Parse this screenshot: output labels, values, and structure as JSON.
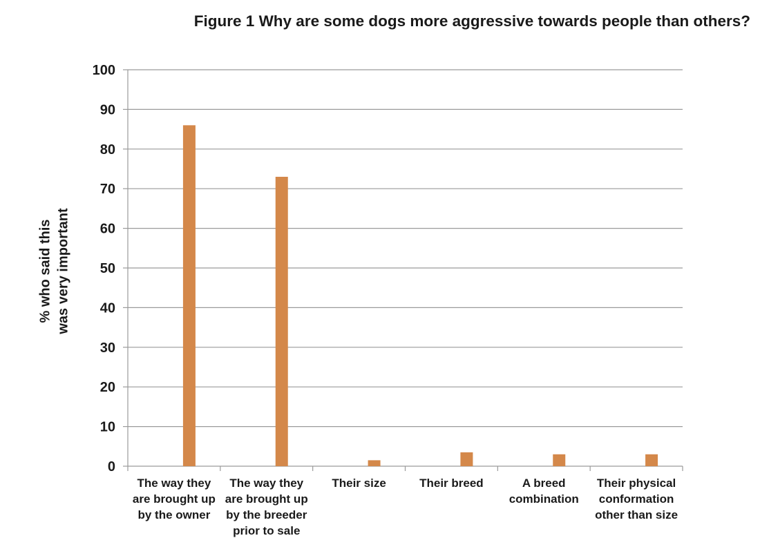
{
  "chart_data": {
    "type": "bar",
    "title": "Figure 1  Why are some dogs more aggressive towards people than others?",
    "ylabel_lines": [
      "% who said this",
      "was very important"
    ],
    "xlabel": "",
    "ylim": [
      0,
      100
    ],
    "yticks": [
      0,
      10,
      20,
      30,
      40,
      50,
      60,
      70,
      80,
      90,
      100
    ],
    "grid": true,
    "bar_color": "#D4884A",
    "categories": [
      [
        "The way they",
        "are brought up",
        "by the owner"
      ],
      [
        "The way they",
        "are brought up",
        "by the breeder",
        "prior to sale"
      ],
      [
        "Their size"
      ],
      [
        "Their breed"
      ],
      [
        "A breed",
        "combination"
      ],
      [
        "Their physical",
        "conformation",
        "other than size"
      ]
    ],
    "values": [
      86,
      73,
      1.5,
      3.5,
      3,
      3
    ]
  }
}
